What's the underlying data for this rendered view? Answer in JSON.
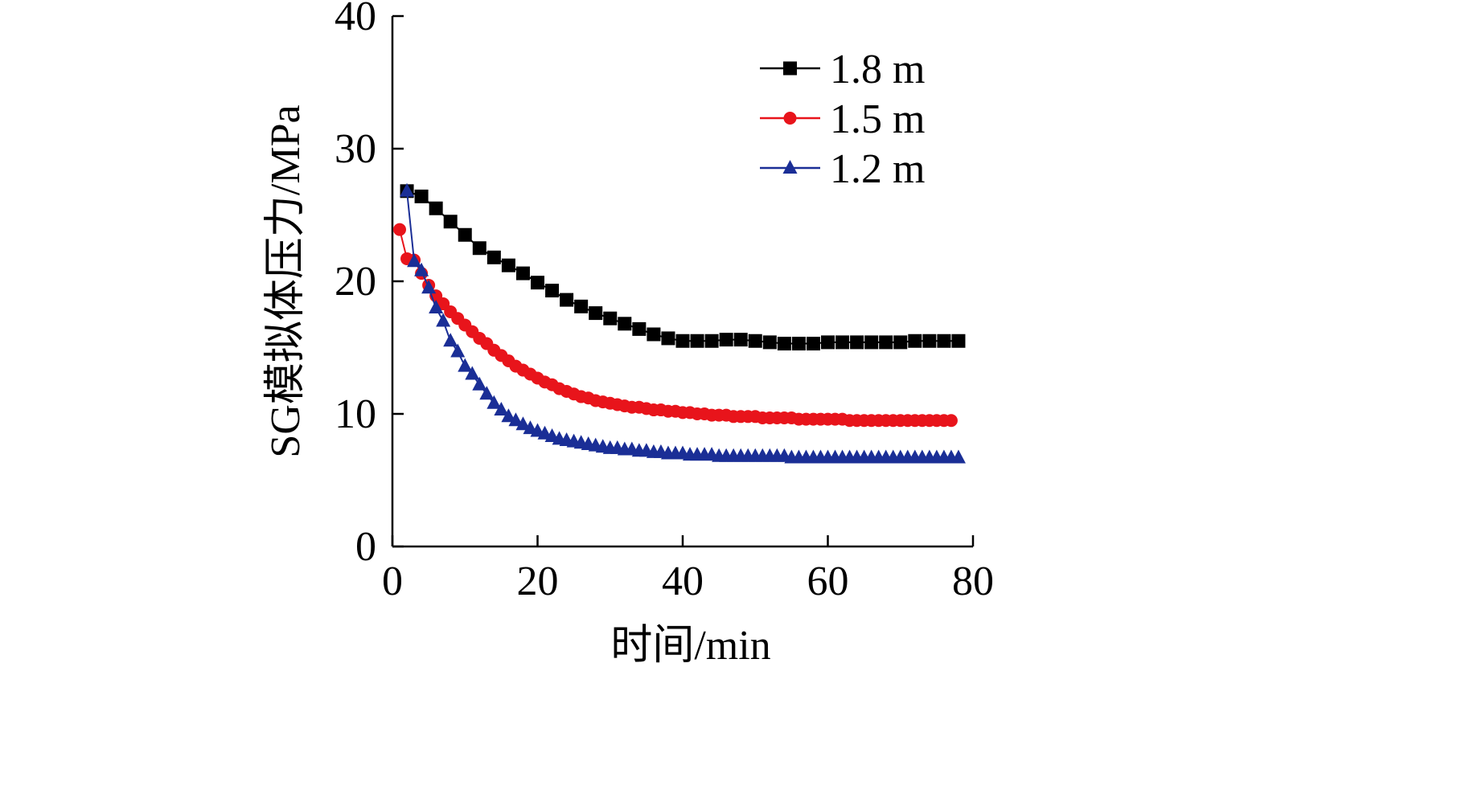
{
  "chart_data": {
    "type": "line",
    "title": "",
    "xlabel": "时间/min",
    "ylabel": "SG模拟体压力/MPa",
    "xlim": [
      0,
      80
    ],
    "ylim": [
      0,
      40
    ],
    "xticks": [
      0,
      20,
      40,
      60,
      80
    ],
    "yticks": [
      0,
      10,
      20,
      30,
      40
    ],
    "grid": false,
    "legend_position": "top-right",
    "series": [
      {
        "name": "1.8 m",
        "color": "#000000",
        "marker": "square",
        "x": [
          2,
          4,
          6,
          8,
          10,
          12,
          14,
          16,
          18,
          20,
          22,
          24,
          26,
          28,
          30,
          32,
          34,
          36,
          38,
          40,
          42,
          44,
          46,
          48,
          50,
          52,
          54,
          56,
          58,
          60,
          62,
          64,
          66,
          68,
          70,
          72,
          74,
          76,
          78
        ],
        "y": [
          26.8,
          26.4,
          25.5,
          24.5,
          23.5,
          22.5,
          21.8,
          21.2,
          20.6,
          19.9,
          19.3,
          18.6,
          18.1,
          17.6,
          17.2,
          16.8,
          16.4,
          16.0,
          15.7,
          15.5,
          15.5,
          15.5,
          15.6,
          15.6,
          15.5,
          15.4,
          15.3,
          15.3,
          15.3,
          15.4,
          15.4,
          15.4,
          15.4,
          15.4,
          15.4,
          15.5,
          15.5,
          15.5,
          15.5
        ]
      },
      {
        "name": "1.5 m",
        "color": "#e8141b",
        "marker": "circle",
        "x": [
          1,
          2,
          3,
          4,
          5,
          6,
          7,
          8,
          9,
          10,
          11,
          12,
          13,
          14,
          15,
          16,
          17,
          18,
          19,
          20,
          21,
          22,
          23,
          24,
          25,
          26,
          27,
          28,
          29,
          30,
          31,
          32,
          33,
          34,
          35,
          36,
          37,
          38,
          39,
          40,
          41,
          42,
          43,
          44,
          45,
          46,
          47,
          48,
          49,
          50,
          51,
          52,
          53,
          54,
          55,
          56,
          57,
          58,
          59,
          60,
          61,
          62,
          63,
          64,
          65,
          66,
          67,
          68,
          69,
          70,
          71,
          72,
          73,
          74,
          75,
          76,
          77
        ],
        "y": [
          23.9,
          21.7,
          21.6,
          20.6,
          19.7,
          18.9,
          18.3,
          17.7,
          17.2,
          16.7,
          16.2,
          15.7,
          15.3,
          14.8,
          14.4,
          14.0,
          13.6,
          13.3,
          13.0,
          12.7,
          12.4,
          12.2,
          11.9,
          11.7,
          11.5,
          11.3,
          11.2,
          11.0,
          10.9,
          10.8,
          10.7,
          10.6,
          10.5,
          10.5,
          10.4,
          10.3,
          10.3,
          10.2,
          10.2,
          10.1,
          10.1,
          10.0,
          10.0,
          9.9,
          9.9,
          9.9,
          9.8,
          9.8,
          9.8,
          9.8,
          9.7,
          9.7,
          9.7,
          9.7,
          9.7,
          9.6,
          9.6,
          9.6,
          9.6,
          9.6,
          9.6,
          9.6,
          9.5,
          9.5,
          9.5,
          9.5,
          9.5,
          9.5,
          9.5,
          9.5,
          9.5,
          9.5,
          9.5,
          9.5,
          9.5,
          9.5,
          9.5
        ]
      },
      {
        "name": "1.2 m",
        "color": "#1a2e96",
        "marker": "triangle",
        "x": [
          2,
          3,
          4,
          5,
          6,
          7,
          8,
          9,
          10,
          11,
          12,
          13,
          14,
          15,
          16,
          17,
          18,
          19,
          20,
          21,
          22,
          23,
          24,
          25,
          26,
          27,
          28,
          29,
          30,
          31,
          32,
          33,
          34,
          35,
          36,
          37,
          38,
          39,
          40,
          41,
          42,
          43,
          44,
          45,
          46,
          47,
          48,
          49,
          50,
          51,
          52,
          53,
          54,
          55,
          56,
          57,
          58,
          59,
          60,
          61,
          62,
          63,
          64,
          65,
          66,
          67,
          68,
          69,
          70,
          71,
          72,
          73,
          74,
          75,
          76,
          77,
          78
        ],
        "y": [
          26.8,
          21.5,
          20.8,
          19.5,
          18.0,
          17.0,
          15.5,
          14.7,
          13.6,
          13.0,
          12.2,
          11.5,
          10.8,
          10.3,
          9.8,
          9.5,
          9.2,
          8.9,
          8.7,
          8.5,
          8.3,
          8.1,
          8.0,
          7.9,
          7.8,
          7.7,
          7.6,
          7.5,
          7.4,
          7.4,
          7.3,
          7.3,
          7.2,
          7.2,
          7.1,
          7.1,
          7.0,
          7.0,
          7.0,
          6.9,
          6.9,
          6.9,
          6.9,
          6.8,
          6.8,
          6.8,
          6.8,
          6.8,
          6.8,
          6.8,
          6.8,
          6.8,
          6.8,
          6.7,
          6.7,
          6.7,
          6.7,
          6.7,
          6.7,
          6.7,
          6.7,
          6.7,
          6.7,
          6.7,
          6.7,
          6.7,
          6.7,
          6.7,
          6.7,
          6.7,
          6.7,
          6.7,
          6.7,
          6.7,
          6.7,
          6.7,
          6.7
        ]
      }
    ]
  }
}
